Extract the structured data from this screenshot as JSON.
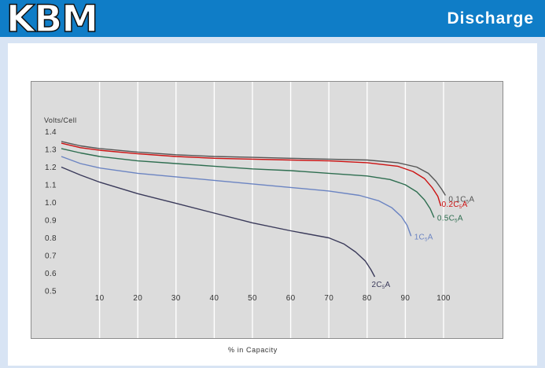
{
  "header": {
    "logo_text": "KBM",
    "section_title": "Discharge",
    "bg_color": "#0f7dc7"
  },
  "chart_data": {
    "type": "line",
    "title": "",
    "xlabel": "% in Capacity",
    "ylabel": "Volts/Cell",
    "xlim": [
      0,
      108
    ],
    "ylim": [
      0.5,
      1.4
    ],
    "x_ticks": [
      "10",
      "20",
      "30",
      "40",
      "50",
      "60",
      "70",
      "80",
      "90",
      "100"
    ],
    "y_ticks": [
      "1.4",
      "1.3",
      "1.2",
      "1.1",
      "1.0",
      "0.9",
      "0.8",
      "0.7",
      "0.6",
      "0.5"
    ],
    "grid": {
      "vertical": true,
      "horizontal": false
    },
    "series": [
      {
        "name": "0.1C5A",
        "label_main": "0.1C",
        "label_sub": "5",
        "label_tail": "A",
        "color": "#555555",
        "x": [
          0,
          5,
          10,
          20,
          30,
          40,
          50,
          60,
          70,
          80,
          88,
          93,
          96,
          98,
          99.5,
          100.5
        ],
        "y": [
          1.345,
          1.32,
          1.305,
          1.285,
          1.27,
          1.26,
          1.255,
          1.25,
          1.245,
          1.24,
          1.225,
          1.2,
          1.165,
          1.12,
          1.075,
          1.04
        ]
      },
      {
        "name": "0.2C5A",
        "label_main": "0.2C",
        "label_sub": "5",
        "label_tail": "A",
        "color": "#cc1111",
        "x": [
          0,
          5,
          10,
          20,
          30,
          40,
          50,
          60,
          70,
          80,
          88,
          92,
          95,
          97,
          98.5,
          99.3
        ],
        "y": [
          1.335,
          1.31,
          1.295,
          1.275,
          1.26,
          1.25,
          1.245,
          1.24,
          1.235,
          1.225,
          1.205,
          1.175,
          1.135,
          1.085,
          1.035,
          0.98
        ]
      },
      {
        "name": "0.5C5A",
        "label_main": "0.5C",
        "label_sub": "5",
        "label_tail": "A",
        "color": "#2e6e50",
        "x": [
          0,
          5,
          10,
          20,
          30,
          40,
          50,
          60,
          70,
          80,
          86,
          90,
          93,
          95,
          96.5,
          97.5
        ],
        "y": [
          1.305,
          1.28,
          1.26,
          1.235,
          1.22,
          1.205,
          1.19,
          1.18,
          1.165,
          1.15,
          1.13,
          1.1,
          1.06,
          1.015,
          0.965,
          0.915
        ]
      },
      {
        "name": "1C5A",
        "label_main": "1C",
        "label_sub": "5",
        "label_tail": "A",
        "color": "#6b84c2",
        "x": [
          0,
          5,
          10,
          20,
          30,
          40,
          50,
          60,
          70,
          78,
          83,
          86.5,
          89,
          90.5,
          91.5
        ],
        "y": [
          1.26,
          1.22,
          1.195,
          1.165,
          1.145,
          1.125,
          1.105,
          1.085,
          1.065,
          1.04,
          1.01,
          0.97,
          0.92,
          0.87,
          0.81
        ]
      },
      {
        "name": "2C5A",
        "label_main": "2C",
        "label_sub": "5",
        "label_tail": "A",
        "color": "#3a3a5a",
        "x": [
          0,
          5,
          10,
          20,
          30,
          40,
          50,
          60,
          70,
          74,
          77,
          79.5,
          81,
          82
        ],
        "y": [
          1.2,
          1.155,
          1.115,
          1.05,
          0.995,
          0.94,
          0.885,
          0.84,
          0.8,
          0.765,
          0.72,
          0.67,
          0.62,
          0.58
        ]
      }
    ]
  }
}
